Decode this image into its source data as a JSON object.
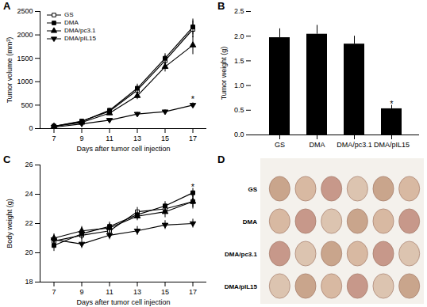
{
  "chart_data": [
    {
      "title": "A",
      "type": "line",
      "x_label": "Days after tumor cell injection",
      "y_label": "Tumor volume (mm³)",
      "x": [
        7,
        9,
        11,
        13,
        15,
        17
      ],
      "xlim": [
        6,
        18
      ],
      "xticks": [
        7,
        9,
        11,
        13,
        15,
        17
      ],
      "ylim": [
        0,
        2500
      ],
      "yticks": [
        0,
        500,
        1000,
        1500,
        2000,
        2500
      ],
      "legend": "top-left",
      "series": [
        {
          "name": "GS",
          "color": "#000000",
          "marker": "square-open",
          "values": [
            50,
            160,
            370,
            820,
            1450,
            2120
          ],
          "errors": [
            10,
            20,
            40,
            90,
            110,
            180
          ]
        },
        {
          "name": "DMA",
          "color": "#000000",
          "marker": "square",
          "values": [
            50,
            150,
            390,
            860,
            1500,
            2170
          ],
          "errors": [
            10,
            20,
            40,
            90,
            100,
            170
          ]
        },
        {
          "name": "DMA/pc3.1",
          "color": "#000000",
          "marker": "triangle",
          "values": [
            50,
            130,
            330,
            700,
            1320,
            1780
          ],
          "errors": [
            10,
            20,
            40,
            80,
            110,
            200
          ]
        },
        {
          "name": "DMA/pIL15",
          "color": "#000000",
          "marker": "triangle-down",
          "values": [
            30,
            100,
            180,
            310,
            360,
            500
          ],
          "errors": [
            5,
            15,
            25,
            40,
            40,
            50
          ]
        }
      ],
      "annotations": [
        {
          "text": "*",
          "x": 17,
          "y": 620
        }
      ]
    },
    {
      "title": "B",
      "type": "bar",
      "y_label": "Tumor weight (g)",
      "categories": [
        "GS",
        "DMA",
        "DMA/pc3.1",
        "DMA/pIL15"
      ],
      "values": [
        1.97,
        2.04,
        1.84,
        0.53
      ],
      "errors": [
        0.18,
        0.18,
        0.16,
        0.07
      ],
      "color": "#000000",
      "ylim": [
        0,
        2.5
      ],
      "yticks": [
        {
          "value": 0,
          "label": "0.0"
        },
        0.5,
        {
          "value": 1,
          "label": "1.0"
        },
        1.5,
        {
          "value": 2,
          "label": "2.0"
        },
        2.5
      ],
      "annotations": [
        {
          "text": "*",
          "category": "DMA/pIL15",
          "y": 0.62
        }
      ]
    },
    {
      "title": "C",
      "type": "line",
      "x_label": "Days after tumor cell injection",
      "y_label": "Body weight (g)",
      "x": [
        7,
        9,
        11,
        13,
        15,
        17
      ],
      "xlim": [
        6,
        18
      ],
      "xticks": [
        7,
        9,
        11,
        13,
        15,
        17
      ],
      "ylim": [
        18,
        26
      ],
      "yticks": [
        18,
        20,
        22,
        24,
        26
      ],
      "series": [
        {
          "name": "GS",
          "color": "#000000",
          "marker": "square-open",
          "values": [
            20.8,
            21.2,
            21.5,
            22.8,
            23.0,
            23.5
          ],
          "errors": [
            0.3,
            0.3,
            0.3,
            0.3,
            0.3,
            0.4
          ]
        },
        {
          "name": "DMA",
          "color": "#000000",
          "marker": "square",
          "values": [
            20.5,
            21.3,
            21.8,
            22.6,
            23.2,
            24.1
          ],
          "errors": [
            0.4,
            0.4,
            0.3,
            0.3,
            0.3,
            0.3
          ]
        },
        {
          "name": "DMA/pc3.1",
          "color": "#000000",
          "marker": "triangle",
          "values": [
            21.0,
            21.5,
            21.7,
            22.5,
            22.8,
            23.5
          ],
          "errors": [
            0.3,
            0.3,
            0.3,
            0.3,
            0.4,
            0.5
          ]
        },
        {
          "name": "DMA/pIL15",
          "color": "#000000",
          "marker": "triangle-down",
          "values": [
            20.9,
            20.6,
            21.2,
            21.5,
            21.9,
            22.0
          ],
          "errors": [
            0.3,
            0.3,
            0.3,
            0.3,
            0.3,
            0.3
          ]
        }
      ],
      "annotations": [
        {
          "text": "*",
          "x": 17,
          "y": 24.5
        }
      ]
    },
    {
      "title": "D",
      "type": "image",
      "rows": [
        {
          "label": "GS",
          "count": 6
        },
        {
          "label": "DMA",
          "count": 6
        },
        {
          "label": "DMA/pc3.1",
          "count": 6
        },
        {
          "label": "DMA/pIL15",
          "count": 6
        }
      ]
    }
  ]
}
